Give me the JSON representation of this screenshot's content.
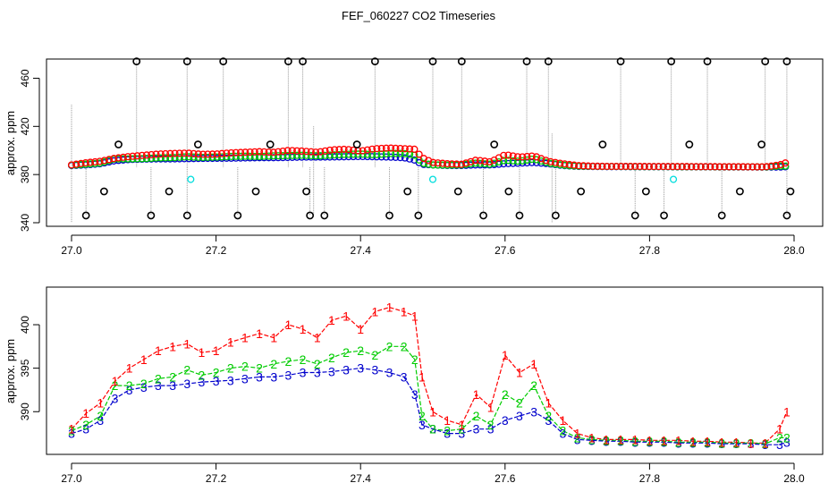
{
  "title": "FEF_060227  CO2 Timeseries",
  "colors": {
    "s1": "#ff0000",
    "s2": "#00cc00",
    "s3": "#0000cc",
    "outlier": "#000000",
    "cyan": "#00dddd",
    "drop": "#999999"
  },
  "chart_data": [
    {
      "type": "scatter",
      "ylabel": "approx. ppm",
      "xlim": [
        27.0,
        28.0
      ],
      "ylim": [
        340,
        470
      ],
      "xticks": [
        "27.0",
        "27.2",
        "27.4",
        "27.6",
        "27.8",
        "28.0"
      ],
      "yticks": [
        "340",
        "380",
        "420",
        "460"
      ],
      "grid": false,
      "outliers_high_x": [
        27.09,
        27.16,
        27.21,
        27.3,
        27.32,
        27.42,
        27.5,
        27.54,
        27.63,
        27.66,
        27.76,
        27.83,
        27.88,
        27.96,
        27.99
      ],
      "outliers_high_y": 474,
      "outliers_low_x": [
        27.02,
        27.11,
        27.16,
        27.23,
        27.33,
        27.35,
        27.44,
        27.48,
        27.57,
        27.62,
        27.67,
        27.78,
        27.82,
        27.9,
        27.99
      ],
      "outliers_low_y": 346,
      "outliers_mid_x": [
        27.045,
        27.065,
        27.135,
        27.175,
        27.255,
        27.275,
        27.325,
        27.395,
        27.465,
        27.535,
        27.585,
        27.605,
        27.705,
        27.735,
        27.795,
        27.855,
        27.925,
        27.955,
        27.995
      ],
      "outliers_mid_y": [
        366,
        405,
        366,
        405,
        366,
        405,
        366,
        405,
        366,
        366,
        405,
        366,
        366,
        405,
        366,
        405,
        366,
        405,
        366
      ],
      "cyan_points": {
        "x": [
          27.165,
          27.5,
          27.833
        ],
        "y": [
          376,
          376,
          376
        ]
      }
    },
    {
      "type": "scatter",
      "ylabel": "approx. ppm",
      "xlim": [
        27.0,
        28.0
      ],
      "ylim": [
        385.5,
        403.5
      ],
      "xticks": [
        "27.0",
        "27.2",
        "27.4",
        "27.6",
        "27.8",
        "28.0"
      ],
      "yticks": [
        "390",
        "395",
        "400"
      ],
      "grid": false,
      "series_markers": [
        "1",
        "2",
        "3"
      ],
      "x": [
        27.0,
        27.02,
        27.04,
        27.06,
        27.08,
        27.1,
        27.12,
        27.14,
        27.16,
        27.18,
        27.2,
        27.22,
        27.24,
        27.26,
        27.28,
        27.3,
        27.32,
        27.34,
        27.36,
        27.38,
        27.4,
        27.42,
        27.44,
        27.46,
        27.475,
        27.485,
        27.5,
        27.52,
        27.54,
        27.56,
        27.58,
        27.6,
        27.62,
        27.64,
        27.66,
        27.68,
        27.7,
        27.72,
        27.74,
        27.76,
        27.78,
        27.8,
        27.82,
        27.84,
        27.86,
        27.88,
        27.9,
        27.92,
        27.94,
        27.96,
        27.98,
        27.99
      ],
      "series": [
        {
          "values": [
            388.0,
            389.8,
            391.0,
            393.5,
            395.0,
            396.0,
            397.0,
            397.5,
            397.8,
            396.8,
            397.0,
            398.0,
            398.5,
            399.0,
            398.5,
            400.0,
            399.5,
            398.5,
            400.5,
            401.0,
            399.5,
            401.5,
            402.0,
            401.5,
            401.0,
            394.0,
            390.0,
            389.0,
            388.5,
            392.0,
            390.5,
            396.5,
            394.5,
            395.5,
            391.0,
            389.0,
            387.5,
            387.0,
            386.8,
            386.8,
            386.8,
            386.7,
            386.7,
            386.7,
            386.6,
            386.6,
            386.5,
            386.5,
            386.4,
            386.4,
            388.0,
            390.0
          ]
        },
        {
          "values": [
            387.8,
            388.5,
            389.5,
            393.0,
            393.0,
            393.2,
            393.8,
            394.0,
            394.8,
            394.2,
            394.5,
            395.0,
            395.2,
            395.0,
            395.5,
            395.8,
            396.0,
            395.5,
            396.2,
            396.8,
            397.0,
            396.5,
            397.5,
            397.5,
            396.0,
            389.5,
            388.0,
            387.8,
            388.0,
            389.5,
            388.5,
            392.0,
            391.0,
            393.0,
            389.5,
            387.8,
            387.0,
            386.8,
            386.7,
            386.7,
            386.6,
            386.6,
            386.6,
            386.5,
            386.5,
            386.5,
            386.4,
            386.4,
            386.4,
            386.3,
            387.0,
            387.0
          ]
        },
        {
          "values": [
            387.5,
            388.0,
            389.0,
            391.5,
            392.5,
            392.8,
            393.0,
            393.0,
            393.2,
            393.4,
            393.5,
            393.6,
            393.8,
            394.0,
            394.0,
            394.2,
            394.5,
            394.5,
            394.6,
            394.8,
            395.0,
            394.8,
            394.5,
            394.0,
            392.0,
            388.5,
            388.0,
            387.5,
            387.5,
            388.0,
            388.0,
            389.0,
            389.5,
            390.0,
            389.0,
            387.5,
            386.8,
            386.7,
            386.6,
            386.6,
            386.5,
            386.5,
            386.5,
            386.4,
            386.4,
            386.4,
            386.3,
            386.3,
            386.3,
            386.2,
            386.2,
            386.5
          ]
        }
      ]
    }
  ]
}
